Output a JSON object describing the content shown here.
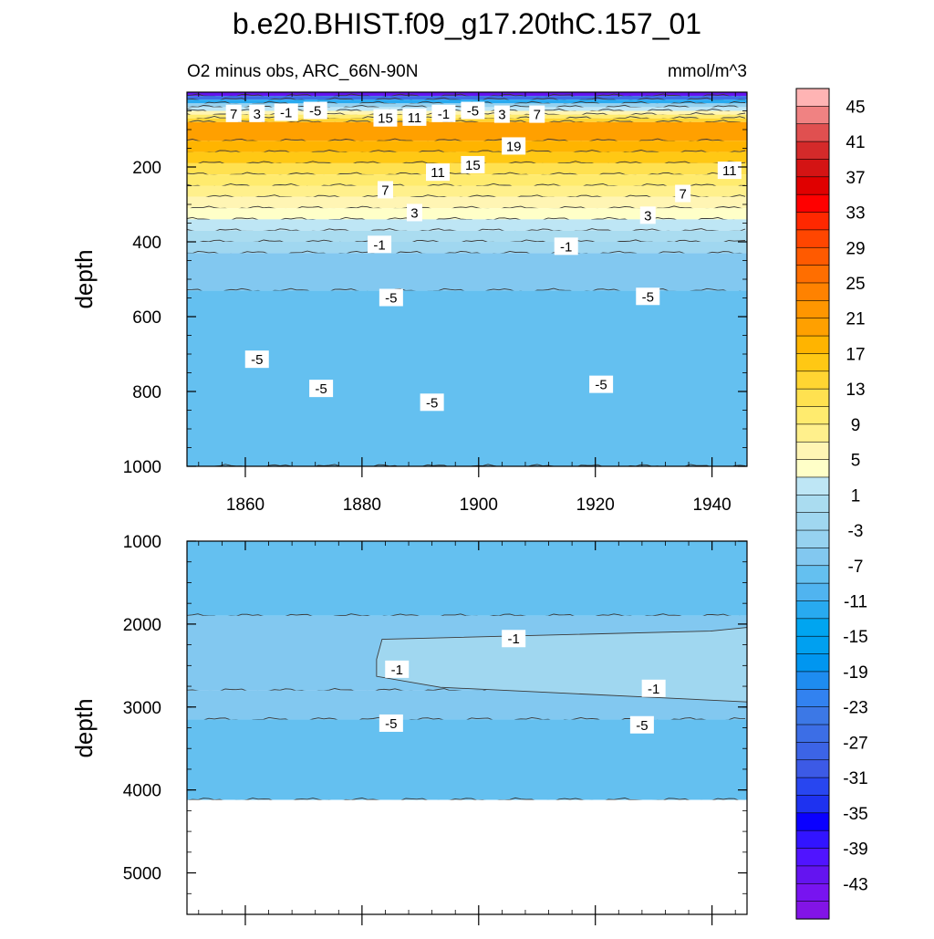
{
  "chart_data": [
    {
      "type": "heatmap",
      "panel": "upper",
      "title": "b.e20.BHIST.f09_g17.20thC.157_01",
      "subtitle_left": "O2 minus obs, ARC_66N-90N",
      "subtitle_right": "mmol/m^3",
      "xlabel": "",
      "ylabel": "depth",
      "xlim": [
        1850,
        1946
      ],
      "ylim": [
        1000,
        0
      ],
      "xticks": [
        "1860",
        "1880",
        "1900",
        "1920",
        "1940"
      ],
      "yticks": [
        "200",
        "400",
        "600",
        "800",
        "1000"
      ],
      "depth_bands": [
        {
          "top": 0,
          "bottom": 10,
          "value": -40
        },
        {
          "top": 10,
          "bottom": 20,
          "value": -23
        },
        {
          "top": 20,
          "bottom": 30,
          "value": -9
        },
        {
          "top": 30,
          "bottom": 40,
          "value": -2
        },
        {
          "top": 40,
          "bottom": 50,
          "value": 4
        },
        {
          "top": 50,
          "bottom": 60,
          "value": 8
        },
        {
          "top": 60,
          "bottom": 70,
          "value": 12
        },
        {
          "top": 70,
          "bottom": 80,
          "value": 16
        },
        {
          "top": 80,
          "bottom": 130,
          "value": 22
        },
        {
          "top": 130,
          "bottom": 160,
          "value": 20
        },
        {
          "top": 160,
          "bottom": 190,
          "value": 18
        },
        {
          "top": 190,
          "bottom": 220,
          "value": 15
        },
        {
          "top": 220,
          "bottom": 250,
          "value": 12
        },
        {
          "top": 250,
          "bottom": 280,
          "value": 10
        },
        {
          "top": 280,
          "bottom": 310,
          "value": 8
        },
        {
          "top": 310,
          "bottom": 340,
          "value": 6
        },
        {
          "top": 340,
          "bottom": 370,
          "value": 4
        },
        {
          "top": 370,
          "bottom": 400,
          "value": 2
        },
        {
          "top": 400,
          "bottom": 430,
          "value": 0
        },
        {
          "top": 430,
          "bottom": 530,
          "value": -3
        },
        {
          "top": 530,
          "bottom": 1000,
          "value": -6
        }
      ],
      "contour_labels": [
        {
          "text": "7",
          "x": 1858,
          "y": 58
        },
        {
          "text": "3",
          "x": 1862,
          "y": 58
        },
        {
          "text": "-1",
          "x": 1867,
          "y": 55
        },
        {
          "text": "-5",
          "x": 1872,
          "y": 50
        },
        {
          "text": "15",
          "x": 1884,
          "y": 70
        },
        {
          "text": "11",
          "x": 1889,
          "y": 68
        },
        {
          "text": "-1",
          "x": 1894,
          "y": 58
        },
        {
          "text": "-5",
          "x": 1899,
          "y": 50
        },
        {
          "text": "3",
          "x": 1904,
          "y": 60
        },
        {
          "text": "7",
          "x": 1910,
          "y": 60
        },
        {
          "text": "19",
          "x": 1906,
          "y": 145
        },
        {
          "text": "15",
          "x": 1899,
          "y": 195
        },
        {
          "text": "11",
          "x": 1893,
          "y": 215
        },
        {
          "text": "7",
          "x": 1884,
          "y": 262
        },
        {
          "text": "3",
          "x": 1889,
          "y": 323
        },
        {
          "text": "-1",
          "x": 1883,
          "y": 408
        },
        {
          "text": "-1",
          "x": 1915,
          "y": 413
        },
        {
          "text": "3",
          "x": 1929,
          "y": 330
        },
        {
          "text": "7",
          "x": 1935,
          "y": 272
        },
        {
          "text": "11",
          "x": 1943,
          "y": 210
        },
        {
          "text": "-5",
          "x": 1885,
          "y": 550
        },
        {
          "text": "-5",
          "x": 1929,
          "y": 547
        },
        {
          "text": "-5",
          "x": 1862,
          "y": 715
        },
        {
          "text": "-5",
          "x": 1873,
          "y": 793
        },
        {
          "text": "-5",
          "x": 1892,
          "y": 830
        },
        {
          "text": "-5",
          "x": 1921,
          "y": 782
        }
      ]
    },
    {
      "type": "heatmap",
      "panel": "lower",
      "xlabel": "",
      "ylabel": "depth",
      "xlim": [
        1850,
        1946
      ],
      "ylim": [
        5500,
        1000
      ],
      "yticks": [
        "1000",
        "2000",
        "3000",
        "4000",
        "5000"
      ],
      "ocean_bottom_depth": 4120,
      "depth_bands": [
        {
          "top": 1000,
          "bottom": 1900,
          "value": -6
        },
        {
          "top": 1900,
          "bottom": 2800,
          "value": -3
        },
        {
          "top": 2800,
          "bottom": 3150,
          "value": -4
        },
        {
          "top": 3150,
          "bottom": 4120,
          "value": -6
        }
      ],
      "regions": [
        {
          "x": [
            1882.5,
            1946
          ],
          "y": [
            2150,
            2850
          ],
          "value": 0
        }
      ],
      "contour_labels": [
        {
          "text": "-1",
          "x": 1906,
          "y": 2180
        },
        {
          "text": "-1",
          "x": 1886,
          "y": 2550
        },
        {
          "text": "-1",
          "x": 1930,
          "y": 2780
        },
        {
          "text": "-5",
          "x": 1885,
          "y": 3200
        },
        {
          "text": "-5",
          "x": 1928,
          "y": 3220
        }
      ]
    }
  ],
  "colorbar": {
    "tick_labels": [
      "45",
      "41",
      "37",
      "33",
      "29",
      "25",
      "21",
      "17",
      "13",
      "9",
      "5",
      "1",
      "-3",
      "-7",
      "-11",
      "-15",
      "-19",
      "-23",
      "-27",
      "-31",
      "-35",
      "-39",
      "-43"
    ],
    "colors_top_to_bottom": [
      "#ffb4b4",
      "#f08282",
      "#e05050",
      "#d42a2a",
      "#d41414",
      "#e00000",
      "#ff0000",
      "#ff2800",
      "#ff4600",
      "#ff5a00",
      "#ff6e00",
      "#ff8200",
      "#ff9600",
      "#ffa000",
      "#ffb400",
      "#ffc814",
      "#ffd532",
      "#ffe150",
      "#ffeb6e",
      "#fff08c",
      "#fff5b4",
      "#ffffc8",
      "#bee6f5",
      "#aadcf0",
      "#a0d7f0",
      "#96d2f0",
      "#82c8f0",
      "#64c0f0",
      "#50b4f0",
      "#28aaf0",
      "#00a5f0",
      "#00a0f0",
      "#0096f0",
      "#1e8cf0",
      "#3282f0",
      "#3c78e6",
      "#3c6ee6",
      "#3c64e6",
      "#3c5ae6",
      "#2846f0",
      "#1e32f0",
      "#0a00ff",
      "#3214ff",
      "#5014ff",
      "#6414f0",
      "#7814f0",
      "#8214e6"
    ]
  },
  "colors": {
    "background": "#ffffff",
    "axis": "#000000",
    "contour_line": "#3a3a3a",
    "mask": "#ffffff"
  }
}
